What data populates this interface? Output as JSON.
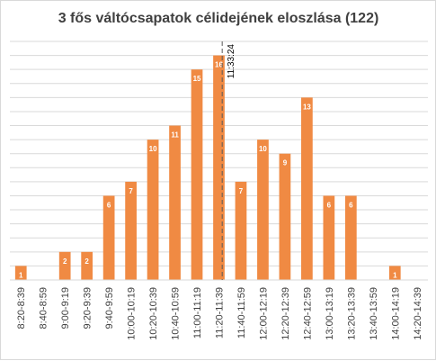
{
  "chart_data": {
    "type": "bar",
    "title": "3 fős váltócsapatok célidejének eloszlása (122)",
    "categories": [
      "8:20-8:39",
      "8:40-8:59",
      "9:00-9:19",
      "9:20-9:39",
      "9:40-9:59",
      "10:00-10:19",
      "10:20-10:39",
      "10:40-10:59",
      "11:00-11:19",
      "11:20-11:39",
      "11:40-11:59",
      "12:00-12:19",
      "12:20-12:39",
      "12:40-12:59",
      "13:00-13:19",
      "13:20-13:39",
      "13:40-13:59",
      "14:00-14:19",
      "14:20-14:39"
    ],
    "values": [
      1,
      0,
      2,
      2,
      6,
      7,
      10,
      11,
      15,
      16,
      7,
      10,
      9,
      13,
      6,
      6,
      0,
      1,
      0
    ],
    "ylim": [
      0,
      17
    ],
    "grid": true,
    "bar_color": "#F08A43",
    "grid_color": "#D9D9D9",
    "label_color_inside": "#ffffff",
    "label_color_zero": "#ffffff",
    "annotation": {
      "text": "11:33:24",
      "x_category_index": 9,
      "x_offset_fraction": 0.65
    }
  }
}
